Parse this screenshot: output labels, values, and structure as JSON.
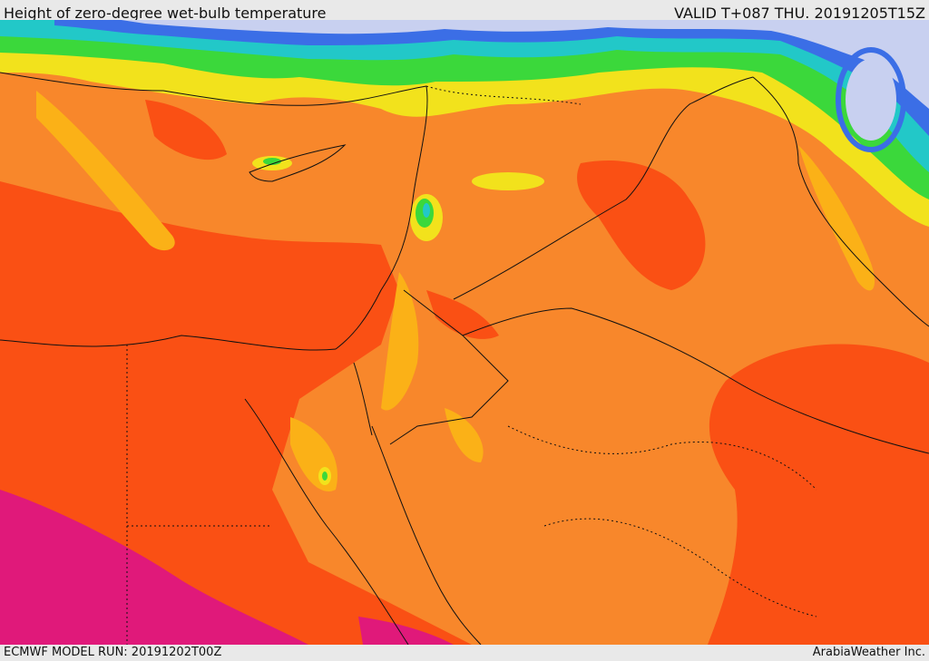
{
  "header": {
    "title": "Height of zero-degree wet-bulb temperature",
    "valid": "VALID T+087 THU. 20191205T15Z"
  },
  "footer": {
    "model_run": "ECMWF MODEL RUN: 20191202T00Z",
    "credit": "ArabiaWeather Inc."
  },
  "palette": {
    "magenta": "#e0197a",
    "red_orange": "#fa5014",
    "orange": "#f8872b",
    "amber": "#fbb117",
    "yellow": "#f2e21c",
    "yellow_green": "#c8f028",
    "green": "#3bd83b",
    "cyan": "#22c8c8",
    "blue": "#3b6ee6",
    "light_blue": "#c8d0f0",
    "border": "#111111"
  },
  "map": {
    "region": "Eastern Mediterranean, Levant, Egypt, Arabia",
    "field": "zero-degree wet-bulb height"
  }
}
